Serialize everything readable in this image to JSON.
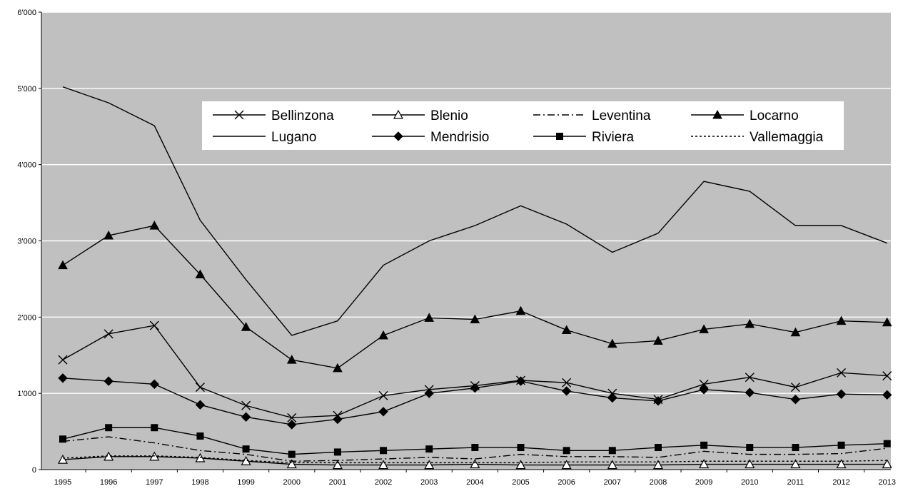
{
  "chart_data": {
    "type": "line",
    "title": "",
    "xlabel": "",
    "ylabel": "",
    "ylim": [
      0,
      6000
    ],
    "yticks": [
      "0",
      "1'000",
      "2'000",
      "3'000",
      "4'000",
      "5'000",
      "6'000"
    ],
    "x": [
      "1995",
      "1996",
      "1997",
      "1998",
      "1999",
      "2000",
      "2001",
      "2002",
      "2003",
      "2004",
      "2005",
      "2006",
      "2007",
      "2008",
      "2009",
      "2010",
      "2011",
      "2012",
      "2013"
    ],
    "grid": true,
    "legend_position": "top-center",
    "plot_background": "#c0c0c0",
    "series": [
      {
        "name": "Bellinzona",
        "marker": "x",
        "dash": "solid",
        "values": [
          1440,
          1780,
          1890,
          1080,
          840,
          680,
          710,
          970,
          1050,
          1100,
          1170,
          1140,
          1000,
          920,
          1120,
          1210,
          1080,
          1270,
          1230
        ]
      },
      {
        "name": "Blenio",
        "marker": "triangle-open",
        "dash": "solid",
        "values": [
          130,
          170,
          170,
          150,
          110,
          70,
          60,
          60,
          60,
          70,
          60,
          60,
          60,
          60,
          70,
          70,
          70,
          70,
          70
        ]
      },
      {
        "name": "Leventina",
        "marker": "none",
        "dash": "dashdot",
        "values": [
          370,
          430,
          350,
          250,
          200,
          110,
          120,
          140,
          160,
          140,
          200,
          170,
          170,
          160,
          240,
          200,
          200,
          210,
          280
        ]
      },
      {
        "name": "Locarno",
        "marker": "triangle-filled",
        "dash": "solid",
        "values": [
          2680,
          3070,
          3200,
          2560,
          1870,
          1440,
          1330,
          1760,
          1990,
          1970,
          2080,
          1830,
          1650,
          1690,
          1840,
          1910,
          1800,
          1950,
          1930
        ]
      },
      {
        "name": "Lugano",
        "marker": "none",
        "dash": "solid",
        "values": [
          5020,
          4810,
          4510,
          3270,
          2490,
          1760,
          1950,
          2680,
          3000,
          3200,
          3460,
          3220,
          2850,
          3100,
          3780,
          3650,
          3200,
          3200,
          2970
        ]
      },
      {
        "name": "Mendrisio",
        "marker": "diamond",
        "dash": "solid",
        "values": [
          1200,
          1160,
          1120,
          850,
          690,
          590,
          660,
          760,
          1000,
          1070,
          1160,
          1030,
          940,
          900,
          1050,
          1010,
          920,
          990,
          980
        ]
      },
      {
        "name": "Riviera",
        "marker": "square",
        "dash": "solid",
        "values": [
          400,
          550,
          550,
          440,
          270,
          200,
          230,
          250,
          270,
          290,
          290,
          250,
          250,
          290,
          320,
          290,
          290,
          320,
          340
        ]
      },
      {
        "name": "Vallemaggia",
        "marker": "none",
        "dash": "dotted",
        "values": [
          150,
          180,
          180,
          160,
          120,
          90,
          90,
          90,
          90,
          90,
          90,
          100,
          100,
          100,
          110,
          110,
          110,
          110,
          120
        ]
      }
    ]
  }
}
